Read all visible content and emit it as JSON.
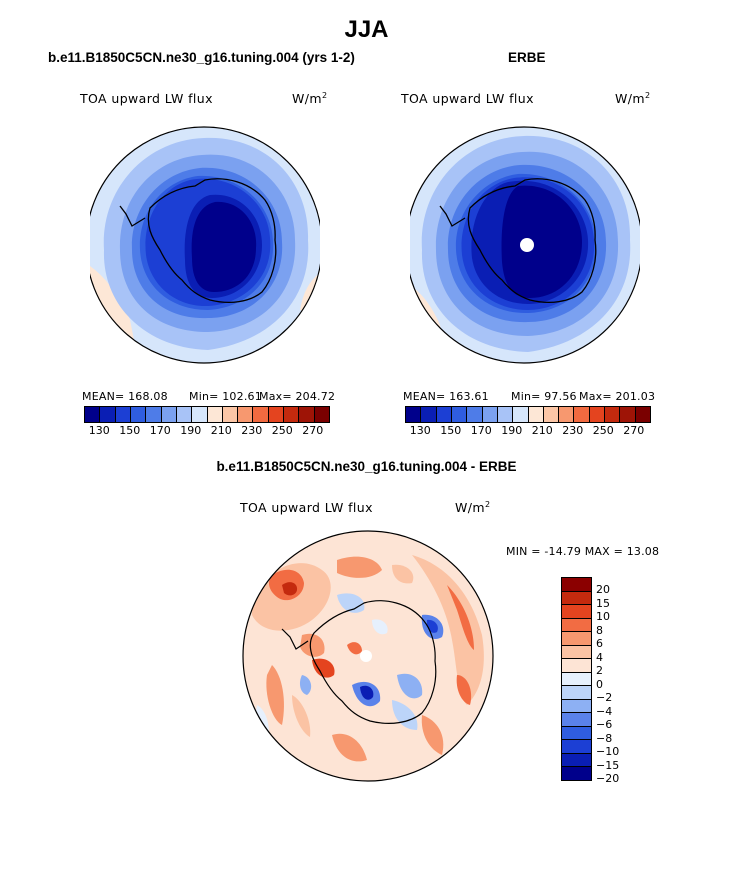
{
  "figure": {
    "title": "JJA"
  },
  "colors": {
    "abs_scale": [
      "#00008b",
      "#0a1eb4",
      "#1c3fd4",
      "#2f5de0",
      "#4e7ce8",
      "#7ba1f0",
      "#a8c3f7",
      "#d6e6fb",
      "#fde7d6",
      "#fbc6a6",
      "#f7986f",
      "#f16a40",
      "#e4441f",
      "#c42a0e",
      "#9e1406",
      "#7a0000"
    ],
    "diff_scale": [
      "#00008b",
      "#0a1eb4",
      "#1c3fd4",
      "#2f5de0",
      "#5a82ea",
      "#8db0f3",
      "#bcd4f9",
      "#e6f0fd",
      "#fde4d5",
      "#fbc3a4",
      "#f7986f",
      "#f26c43",
      "#e4441f",
      "#c42a0e",
      "#8b0000"
    ]
  },
  "panels": [
    {
      "title": "b.e11.B1850C5CN.ne30_g16.tuning.004 (yrs 1-2)",
      "variable": "TOA upward LW flux",
      "units": "W/m",
      "units_sup": "2",
      "mean_text": "MEAN= 168.08",
      "min_text": "Min= 102.61",
      "max_text": "Max= 204.72",
      "colorbar_ticks": [
        "130",
        "150",
        "170",
        "190",
        "210",
        "230",
        "250",
        "270"
      ]
    },
    {
      "title": "ERBE",
      "variable": "TOA upward LW flux",
      "units": "W/m",
      "units_sup": "2",
      "mean_text": "MEAN= 163.61",
      "min_text": "Min= 97.56",
      "max_text": "Max= 201.03",
      "colorbar_ticks": [
        "130",
        "150",
        "170",
        "190",
        "210",
        "230",
        "250",
        "270"
      ]
    }
  ],
  "difference": {
    "title": "b.e11.B1850C5CN.ne30_g16.tuning.004 - ERBE",
    "variable": "TOA upward LW flux",
    "units": "W/m",
    "units_sup": "2",
    "minmax_text": "MIN = -14.79 MAX =  13.08",
    "colorbar_labels": [
      "20",
      "15",
      "10",
      "8",
      "6",
      "4",
      "2",
      "0",
      "−2",
      "−4",
      "−6",
      "−8",
      "−10",
      "−15",
      "−20"
    ]
  }
}
